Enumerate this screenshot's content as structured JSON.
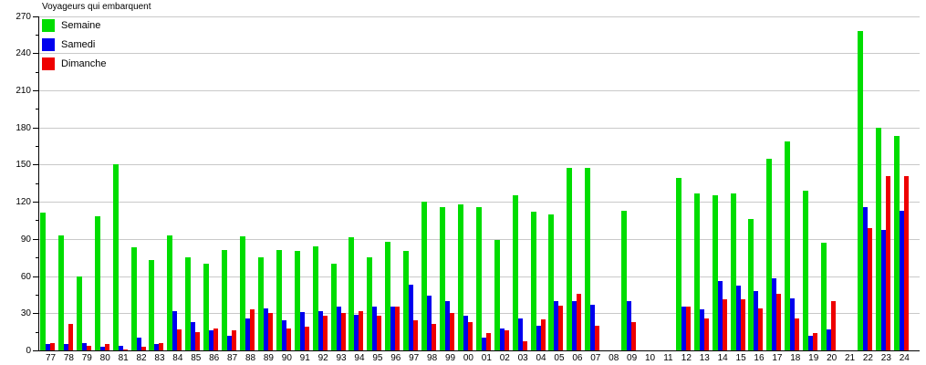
{
  "chart_data": {
    "type": "bar",
    "title": "Voyageurs qui embarquent",
    "xlabel": "",
    "ylabel": "",
    "ylim": [
      0,
      270
    ],
    "ytick_step": 30,
    "ytick_minor_step": 15,
    "grid": true,
    "legend_position": "top-left",
    "categories": [
      "77",
      "78",
      "79",
      "80",
      "81",
      "82",
      "83",
      "84",
      "85",
      "86",
      "87",
      "88",
      "89",
      "90",
      "91",
      "92",
      "93",
      "94",
      "95",
      "96",
      "97",
      "98",
      "99",
      "00",
      "01",
      "02",
      "03",
      "04",
      "05",
      "06",
      "07",
      "08",
      "09",
      "10",
      "11",
      "12",
      "13",
      "14",
      "15",
      "16",
      "17",
      "18",
      "19",
      "20",
      "21",
      "22",
      "23",
      "24"
    ],
    "series": [
      {
        "name": "Semaine",
        "color": "#00dd00",
        "values": [
          111,
          93,
          60,
          108,
          150,
          83,
          73,
          93,
          75,
          70,
          81,
          92,
          75,
          81,
          80,
          84,
          70,
          91,
          75,
          88,
          80,
          120,
          116,
          118,
          116,
          89,
          125,
          112,
          110,
          147,
          147,
          0,
          113,
          0,
          0,
          139,
          127,
          125,
          127,
          106,
          155,
          169,
          129,
          87,
          0,
          258,
          180,
          173
        ]
      },
      {
        "name": "Samedi",
        "color": "#0000ee",
        "values": [
          5,
          5,
          6,
          3,
          4,
          10,
          5,
          32,
          23,
          16,
          12,
          26,
          34,
          24,
          31,
          32,
          35,
          29,
          35,
          35,
          53,
          44,
          40,
          28,
          10,
          18,
          26,
          20,
          40,
          40,
          37,
          0,
          40,
          0,
          0,
          35,
          33,
          56,
          52,
          48,
          58,
          42,
          12,
          17,
          0,
          116,
          97,
          113
        ]
      },
      {
        "name": "Dimanche",
        "color": "#ee0000",
        "values": [
          6,
          21,
          4,
          5,
          1,
          3,
          6,
          17,
          15,
          18,
          16,
          33,
          30,
          18,
          19,
          28,
          30,
          32,
          28,
          35,
          24,
          21,
          30,
          23,
          14,
          16,
          7,
          25,
          36,
          46,
          20,
          0,
          23,
          0,
          0,
          35,
          26,
          41,
          41,
          34,
          46,
          26,
          14,
          40,
          0,
          99,
          141,
          141
        ]
      }
    ],
    "colors": {
      "background": "#ffffff",
      "gridline": "#c9c9c9",
      "axis": "#000000",
      "text": "#000000"
    }
  }
}
